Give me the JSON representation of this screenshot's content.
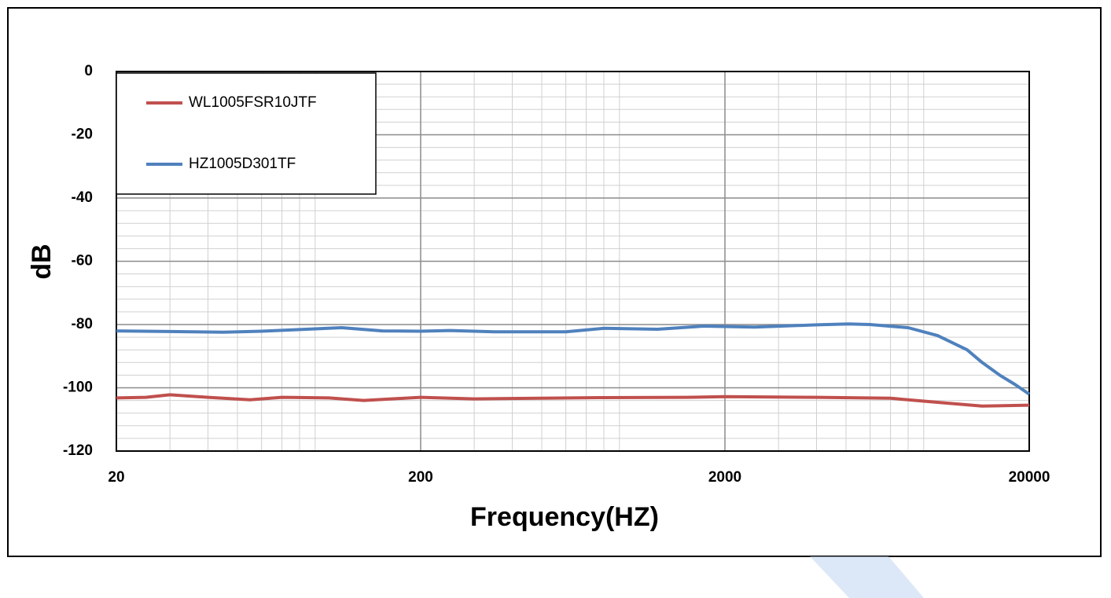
{
  "chart_data": {
    "type": "line",
    "x_label": "Frequency(HZ)",
    "y_label": "dB",
    "log_x": true,
    "grid": true,
    "legend": "upper left",
    "xlim": [
      20,
      20000
    ],
    "xticks": [
      20,
      200,
      2000,
      20000
    ],
    "ylim": [
      -120,
      0
    ],
    "yticks": [
      -120,
      -100,
      -80,
      -60,
      -40,
      -20,
      0
    ],
    "series": [
      {
        "name": "WL1005FSR10JTF",
        "color": "#c0504d",
        "x": [
          20,
          25,
          30,
          40,
          55,
          70,
          100,
          130,
          200,
          300,
          500,
          800,
          1500,
          2000,
          4000,
          7000,
          10000,
          14000,
          20000
        ],
        "values": [
          -103.2,
          -103,
          -102.2,
          -103,
          -103.8,
          -103,
          -103.2,
          -104,
          -103,
          -103.5,
          -103.3,
          -103.1,
          -103,
          -102.8,
          -103,
          -103.3,
          -104.6,
          -105.8,
          -105.5
        ]
      },
      {
        "name": "HZ1005D301TF",
        "color": "#4f81bd",
        "x": [
          20,
          30,
          45,
          60,
          80,
          110,
          150,
          200,
          250,
          350,
          600,
          800,
          1200,
          1700,
          2500,
          4000,
          5100,
          6000,
          8000,
          10000,
          12500,
          14000,
          16000,
          18000,
          20000
        ],
        "values": [
          -82,
          -82.2,
          -82.4,
          -82.1,
          -81.6,
          -81,
          -82,
          -82.1,
          -81.9,
          -82.3,
          -82.3,
          -81.2,
          -81.5,
          -80.5,
          -80.8,
          -80.1,
          -79.8,
          -80,
          -81,
          -83.5,
          -88,
          -92,
          -96,
          -99,
          -102
        ]
      }
    ]
  }
}
